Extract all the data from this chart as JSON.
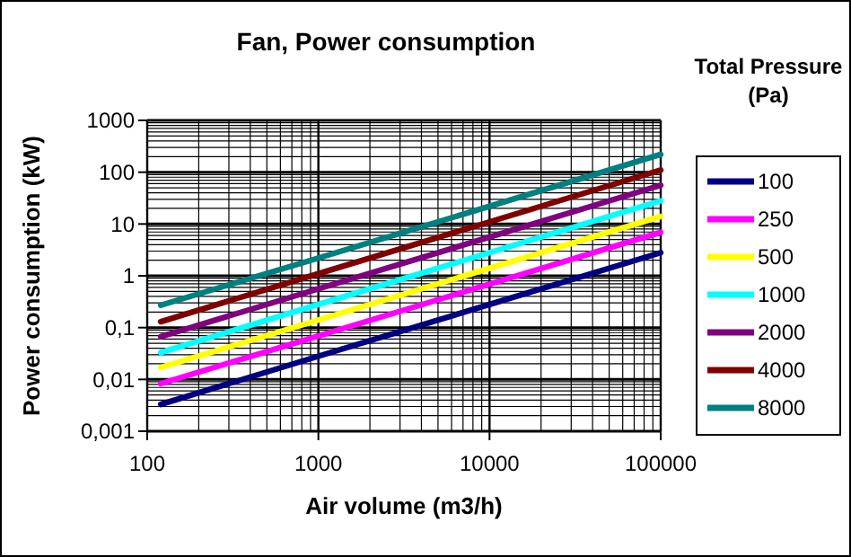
{
  "chart_data": {
    "type": "line",
    "title": "Fan, Power consumption",
    "xlabel": "Air volume (m3/h)",
    "ylabel": "Power consumption (kW)",
    "legend_title": "Total Pressure (Pa)",
    "log": "xy",
    "grid": true,
    "legend": "right",
    "marker": "none",
    "line_style": "solid",
    "x": [
      120,
      1000,
      10000,
      100000
    ],
    "xlim": [
      100,
      100000
    ],
    "xticks": [
      100,
      1000,
      10000,
      100000
    ],
    "ylim": [
      0.001,
      1000
    ],
    "yticks": [
      {
        "value": 0.001,
        "label": "0,001"
      },
      {
        "value": 0.01,
        "label": "0,01"
      },
      {
        "value": 0.1,
        "label": "0,1"
      },
      1,
      10,
      100,
      1000
    ],
    "series": [
      {
        "name": "100",
        "color": "#000080",
        "values": [
          0.0033,
          0.028,
          0.28,
          2.8
        ]
      },
      {
        "name": "250",
        "color": "#ff00ff",
        "values": [
          0.0083,
          0.069,
          0.69,
          6.9
        ]
      },
      {
        "name": "500",
        "color": "#ffff00",
        "values": [
          0.017,
          0.14,
          1.4,
          14
        ]
      },
      {
        "name": "1000",
        "color": "#00ffff",
        "values": [
          0.033,
          0.28,
          2.8,
          28
        ]
      },
      {
        "name": "2000",
        "color": "#800080",
        "values": [
          0.067,
          0.56,
          5.6,
          56
        ]
      },
      {
        "name": "4000",
        "color": "#800000",
        "values": [
          0.13,
          1.1,
          11,
          110
        ]
      },
      {
        "name": "8000",
        "color": "#008080",
        "values": [
          0.27,
          2.2,
          22,
          220
        ]
      }
    ]
  }
}
